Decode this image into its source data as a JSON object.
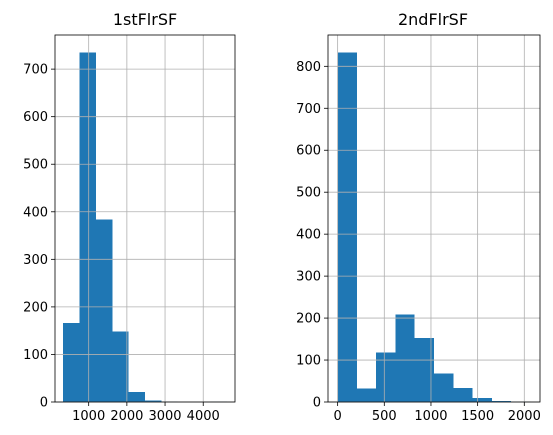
{
  "chart_data": [
    {
      "type": "bar",
      "title": "1stFlrSF",
      "xlabel": "",
      "ylabel": "",
      "bin_edges": [
        334,
        762.2,
        1190.4,
        1618.6,
        2046.8,
        2475.0,
        2903.2,
        3331.4,
        3759.6,
        4187.8,
        4616.0
      ],
      "values": [
        166,
        735,
        384,
        148,
        21,
        3,
        1,
        0,
        0,
        1
      ],
      "color": "#1f77b4",
      "xlim": [
        118,
        4832
      ],
      "ylim": [
        0,
        771.75
      ],
      "xticks": [
        1000,
        2000,
        3000,
        4000
      ],
      "xtick_labels": [
        "1000",
        "2000",
        "3000",
        "4000"
      ],
      "yticks": [
        0,
        100,
        200,
        300,
        400,
        500,
        600,
        700
      ],
      "ytick_labels": [
        "0",
        "100",
        "200",
        "300",
        "400",
        "500",
        "600",
        "700"
      ],
      "grid": true
    },
    {
      "type": "bar",
      "title": "2ndFlrSF",
      "xlabel": "",
      "ylabel": "",
      "bin_edges": [
        0,
        206.5,
        413.0,
        619.5,
        826.0,
        1032.5,
        1239.0,
        1445.5,
        1652.0,
        1858.5,
        2065.0
      ],
      "values": [
        833,
        32,
        118,
        208,
        153,
        68,
        33,
        9,
        2,
        1
      ],
      "color": "#1f77b4",
      "xlim": [
        -103.25,
        2168.25
      ],
      "ylim": [
        0,
        874.65
      ],
      "xticks": [
        0,
        500,
        1000,
        1500,
        2000
      ],
      "xtick_labels": [
        "0",
        "500",
        "1000",
        "1500",
        "2000"
      ],
      "yticks": [
        0,
        100,
        200,
        300,
        400,
        500,
        600,
        700,
        800
      ],
      "ytick_labels": [
        "0",
        "100",
        "200",
        "300",
        "400",
        "500",
        "600",
        "700",
        "800"
      ],
      "grid": true
    }
  ]
}
